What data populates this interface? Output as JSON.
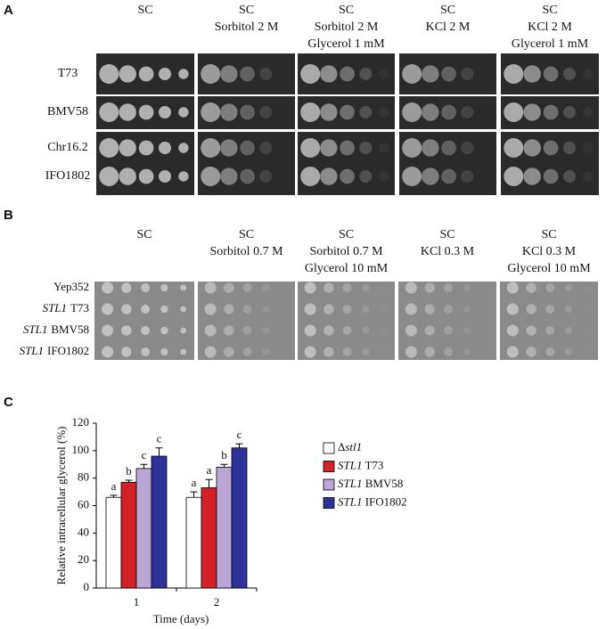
{
  "panel_a": {
    "letter": "A",
    "columns": [
      [
        "SC"
      ],
      [
        "SC",
        "Sorbitol 2 M"
      ],
      [
        "SC",
        "Sorbitol 2 M",
        "Glycerol 1 mM"
      ],
      [
        "SC",
        "KCl 2 M"
      ],
      [
        "SC",
        "KCl 2 M",
        "Glycerol 1 mM"
      ]
    ],
    "rows": [
      "T73",
      "BMV58",
      "Chr16.2",
      "IFO1802"
    ]
  },
  "panel_b": {
    "letter": "B",
    "columns": [
      [
        "SC"
      ],
      [
        "SC",
        "Sorbitol 0.7 M"
      ],
      [
        "SC",
        "Sorbitol 0.7 M",
        "Glycerol 10 mM"
      ],
      [
        "SC",
        "KCl 0.3 M"
      ],
      [
        "SC",
        "KCl 0.3 M",
        "Glycerol 10 mM"
      ]
    ],
    "rows": [
      "Yep352",
      {
        "gene": "STL1",
        "strain": "T73"
      },
      {
        "gene": "STL1",
        "strain": "BMV58"
      },
      {
        "gene": "STL1",
        "strain": "IFO1802"
      }
    ]
  },
  "chart_data": {
    "type": "bar",
    "panel_letter": "C",
    "y_label": "Relative intracellular glycerol (%)",
    "x_label": "Time (days)",
    "categories": [
      "1",
      "2"
    ],
    "ylim": [
      0,
      120
    ],
    "yticks": [
      0,
      20,
      40,
      60,
      80,
      100,
      120
    ],
    "series": [
      {
        "name": "Δstl1",
        "color": "#ffffff",
        "values": [
          66,
          66
        ],
        "errors": [
          1.5,
          4
        ],
        "sig_labels": [
          "a",
          "a"
        ]
      },
      {
        "name": "STL1 T73",
        "color": "#d42128",
        "values": [
          77,
          73
        ],
        "errors": [
          1.5,
          6
        ],
        "sig_labels": [
          "b",
          "a"
        ]
      },
      {
        "name": "STL1 BMV58",
        "color": "#b9a6d6",
        "values": [
          87,
          88
        ],
        "errors": [
          3,
          2
        ],
        "sig_labels": [
          "c",
          "b"
        ]
      },
      {
        "name": "STL1 IFO1802",
        "color": "#2e3196",
        "values": [
          96,
          102
        ],
        "errors": [
          6,
          3
        ],
        "sig_labels": [
          "c",
          "c"
        ]
      }
    ]
  }
}
